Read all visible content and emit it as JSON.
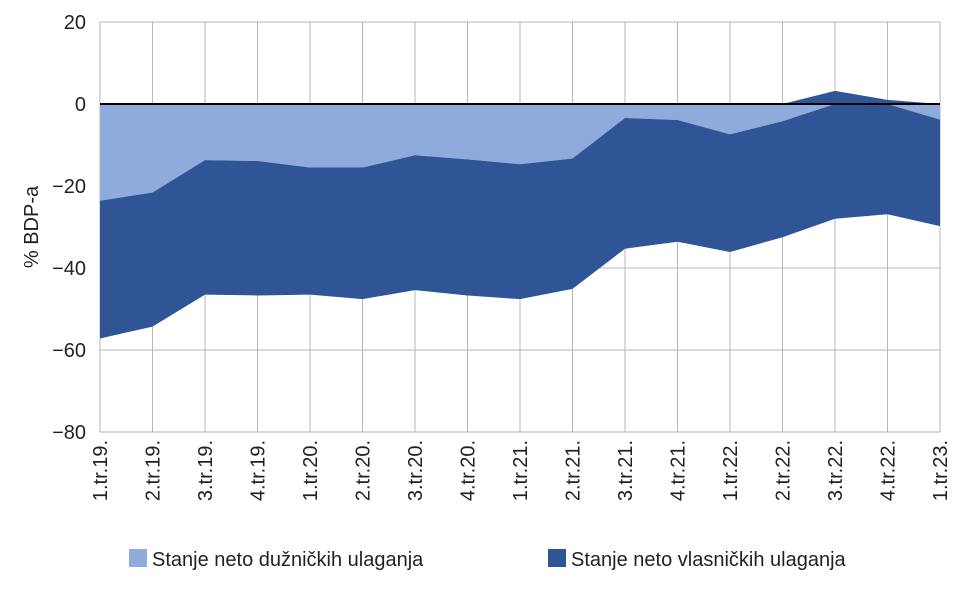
{
  "chart_data": {
    "type": "area",
    "stacked": true,
    "ylabel": "% BDP-a",
    "xlabel": "",
    "ylim": [
      -80,
      20
    ],
    "yticks": [
      20,
      0,
      -20,
      -40,
      -60,
      -80
    ],
    "ytick_labels": [
      "20",
      "0",
      "−20",
      "−40",
      "−60",
      "−80"
    ],
    "grid": true,
    "legend_position": "bottom",
    "categories": [
      "1.tr.19.",
      "2.tr.19.",
      "3.tr.19.",
      "4.tr.19.",
      "1.tr.20.",
      "2.tr.20.",
      "3.tr.20.",
      "4.tr.20.",
      "1.tr.21.",
      "2.tr.21.",
      "3.tr.21.",
      "4.tr.21.",
      "1.tr.22.",
      "2.tr.22.",
      "3.tr.22.",
      "4.tr.22.",
      "1.tr.23."
    ],
    "series": [
      {
        "name": "Stanje neto dužničkih ulaganja",
        "color": "#8faadc",
        "values": [
          -23.6,
          -21.6,
          -13.7,
          -13.9,
          -15.5,
          -15.5,
          -12.5,
          -13.5,
          -14.7,
          -13.3,
          -3.4,
          -3.9,
          -7.4,
          -4.2,
          3.2,
          1.0,
          -3.8
        ]
      },
      {
        "name": "Stanje neto vlasničkih ulaganja",
        "color": "#2f5597",
        "values": [
          -33.6,
          -32.7,
          -32.8,
          -32.8,
          -31.0,
          -32.1,
          -32.9,
          -33.2,
          -32.9,
          -31.8,
          -31.9,
          -29.7,
          -28.7,
          -28.3,
          -28.0,
          -26.9,
          -26.0
        ]
      }
    ],
    "reference_line": 0
  }
}
